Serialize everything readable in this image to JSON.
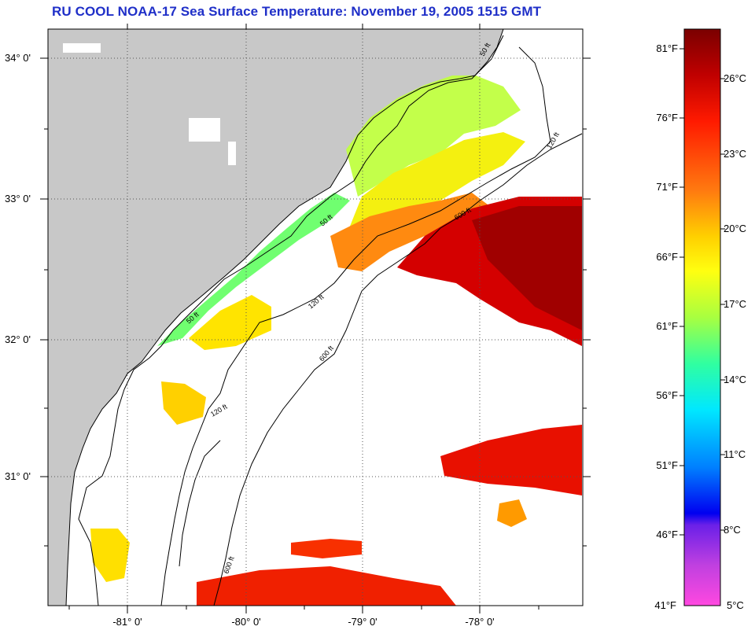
{
  "title": "RU COOL  NOAA-17  Sea Surface Temperature:  November 19, 2005 1515 GMT",
  "latitude_labels": [
    "34° 0'",
    "33° 0'",
    "32° 0'",
    "31° 0'"
  ],
  "longitude_labels": [
    "-81° 0'",
    "-80° 0'",
    "-79° 0'",
    "-78° 0'"
  ],
  "contour_labels": [
    "50 ft",
    "120 ft",
    "600 ft",
    "50 ft",
    "120 ft",
    "600 ft",
    "50 ft",
    "120 ft",
    "600 ft"
  ],
  "colorbar": {
    "fahrenheit_labels": [
      "81°F",
      "76°F",
      "71°F",
      "66°F",
      "61°F",
      "56°F",
      "51°F",
      "46°F",
      "41°F"
    ],
    "celsius_labels": [
      "26°C",
      "23°C",
      "20°C",
      "17°C",
      "14°C",
      "11°C",
      "8°C",
      "5°C"
    ],
    "gradient_colors": [
      "#7a0000",
      "#c00000",
      "#ff1a00",
      "#ff7a10",
      "#ffd000",
      "#ffff10",
      "#a8ff40",
      "#30ffa0",
      "#00e8ff",
      "#0080ff",
      "#0000f0",
      "#9030e0",
      "#ff48e0"
    ]
  },
  "colors": {
    "land": "#c8c8c8",
    "ocean_nodata": "#ffffff",
    "grid": "#555555",
    "title": "#1f2fc8"
  }
}
